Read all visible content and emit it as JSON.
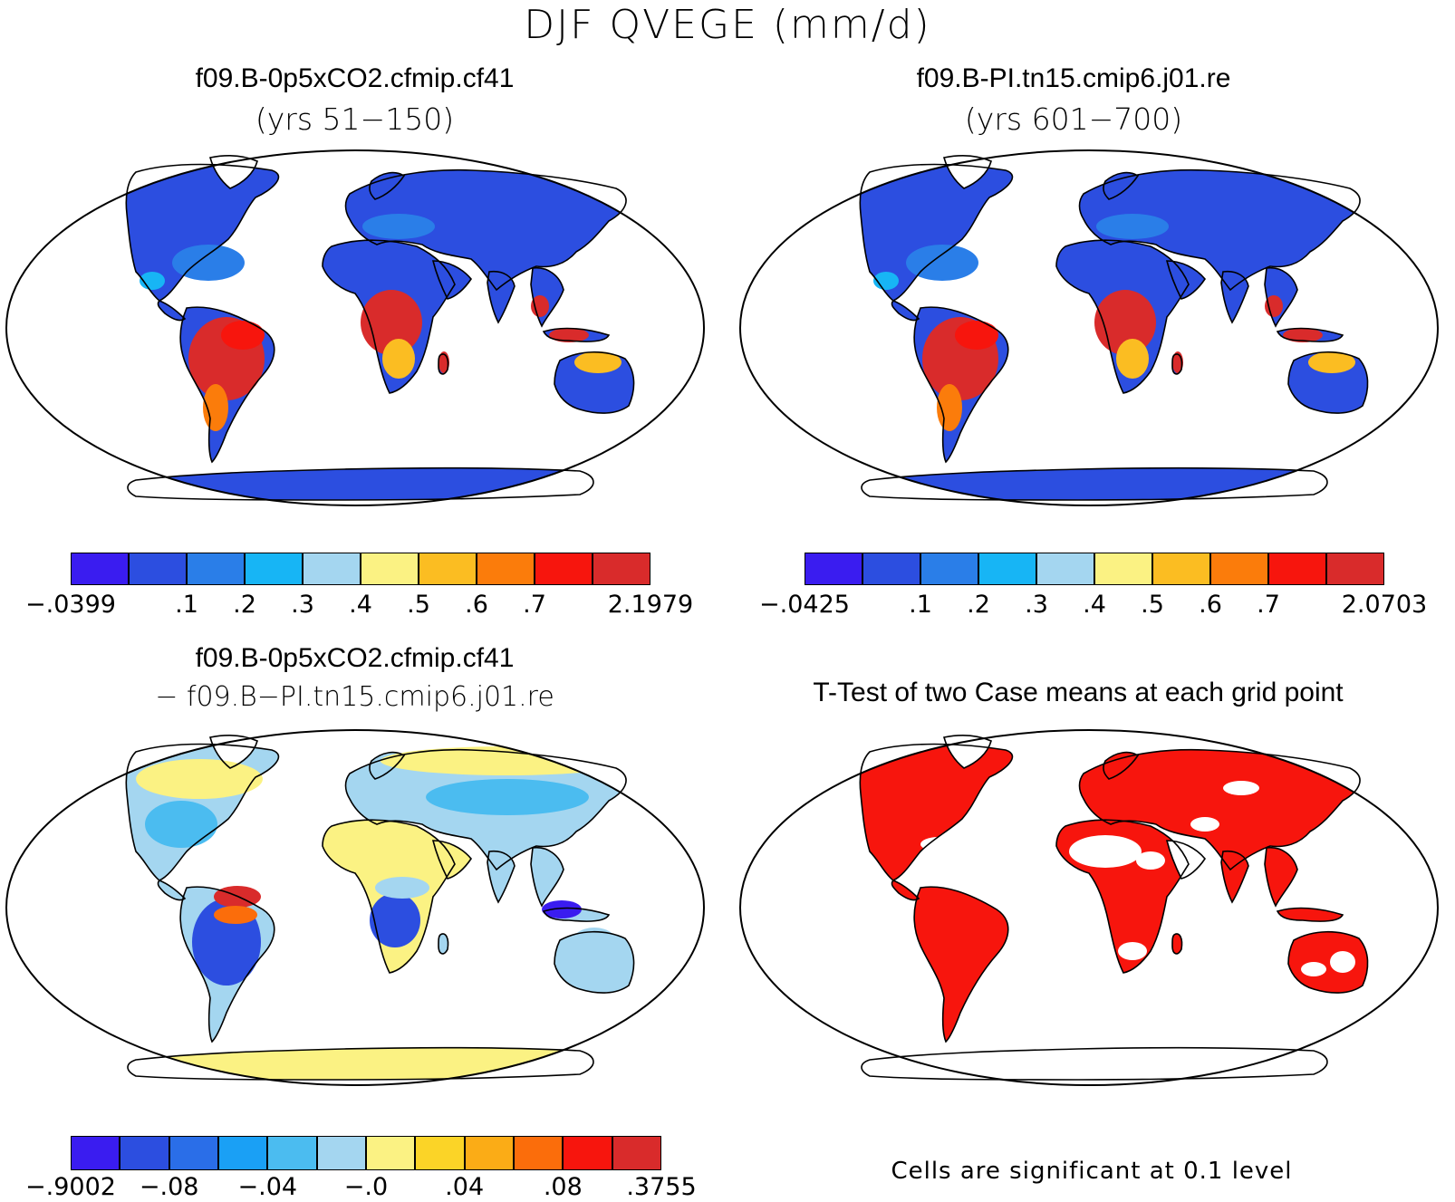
{
  "title": "DJF QVEGE (mm/d)",
  "panels": {
    "top_left": {
      "case": "f09.B-0p5xCO2.cfmip.cf41",
      "years": "(yrs 51−150)"
    },
    "top_right": {
      "case": "f09.B-PI.tn15.cmip6.j01.re",
      "years": "(yrs 601−700)"
    },
    "bottom_left": {
      "case": "f09.B-0p5xCO2.cfmip.cf41",
      "line2": "− f09.B−PI.tn15.cmip6.j01.re"
    },
    "bottom_right": {
      "title": "T-Test of two Case means at each grid point",
      "note": "Cells are significant at 0.1 level"
    }
  },
  "colorbars": {
    "top_left": {
      "colors": [
        "#3a1cf0",
        "#2c4ee0",
        "#2a7ee8",
        "#17b5f5",
        "#a4d6f0",
        "#fbf283",
        "#fbbd22",
        "#fb7c0b",
        "#f7150d",
        "#d92b2b"
      ],
      "labels": [
        "−.0399",
        ".1",
        ".2",
        ".3",
        ".4",
        ".5",
        ".6",
        ".7",
        "2.1979"
      ]
    },
    "top_right": {
      "colors": [
        "#3a1cf0",
        "#2c4ee0",
        "#2a7ee8",
        "#17b5f5",
        "#a4d6f0",
        "#fbf283",
        "#fbbd22",
        "#fb7c0b",
        "#f7150d",
        "#d92b2b"
      ],
      "labels": [
        "−.0425",
        ".1",
        ".2",
        ".3",
        ".4",
        ".5",
        ".6",
        ".7",
        "2.0703"
      ]
    },
    "bottom_left": {
      "colors": [
        "#3a1cf0",
        "#2c4ee0",
        "#2a6ee8",
        "#1aa0f5",
        "#4bbcf0",
        "#a4d6f0",
        "#fbf283",
        "#fbd427",
        "#fbac16",
        "#fb6d0b",
        "#f7150d",
        "#d92b2b"
      ],
      "labels": [
        "−.9002",
        "−.08",
        "−.04",
        "−.0",
        ".04",
        ".08",
        ".3755"
      ]
    }
  }
}
